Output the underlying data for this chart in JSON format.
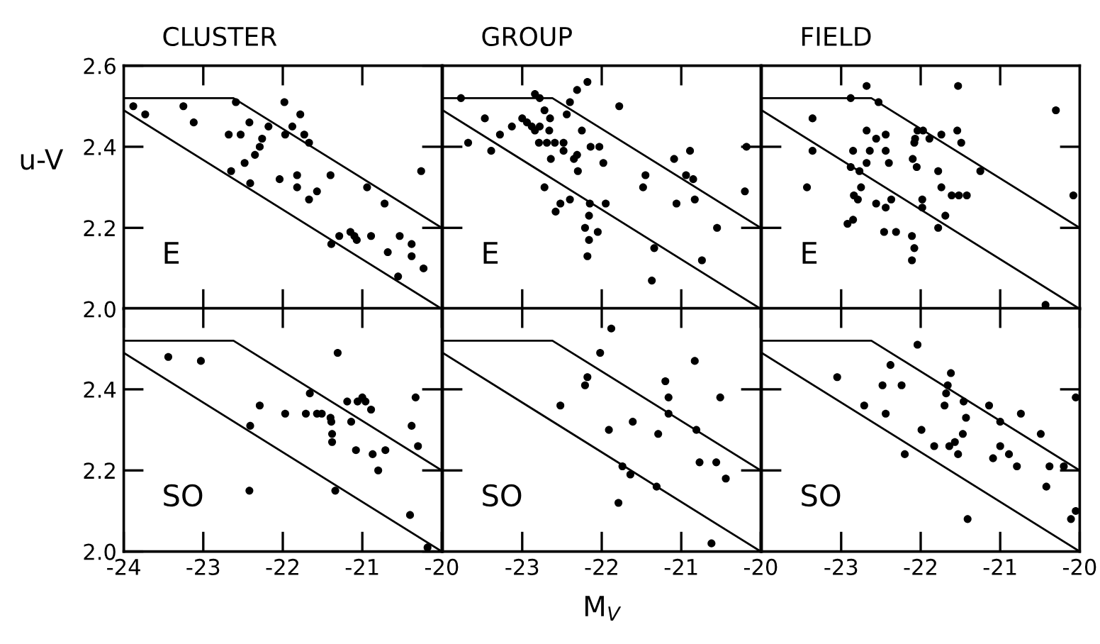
{
  "chart_data": [
    {
      "type": "scatter",
      "title": "CLUSTER",
      "ylabel": "u-V",
      "annotations": [
        "E"
      ],
      "tick_labels": "y",
      "xlim": [
        -24,
        -20
      ],
      "ylim": [
        2.0,
        2.6
      ],
      "xticks": [
        -23,
        -22,
        -21
      ],
      "yticks": [
        {
          "value": 2.0,
          "label": "2.0"
        },
        2.2,
        2.4,
        2.6
      ],
      "series": [
        {
          "color": "#000000",
          "marker": "circle",
          "x": [
            -23.88,
            -23.73,
            -23.25,
            -23.12,
            -22.59,
            -22.68,
            -22.53,
            -22.42,
            -22.18,
            -21.98,
            -21.78,
            -21.88,
            -21.97,
            -21.73,
            -21.67,
            -22.26,
            -22.29,
            -22.35,
            -22.48,
            -22.65,
            -22.41,
            -22.04,
            -21.82,
            -21.82,
            -21.57,
            -21.67,
            -21.4,
            -20.94,
            -20.72,
            -20.26,
            -21.39,
            -21.29,
            -21.15,
            -21.1,
            -21.07,
            -20.89,
            -20.53,
            -20.38,
            -20.38,
            -20.68,
            -20.55,
            -20.23
          ],
          "values": [
            2.5,
            2.48,
            2.5,
            2.46,
            2.51,
            2.43,
            2.43,
            2.46,
            2.45,
            2.51,
            2.48,
            2.45,
            2.43,
            2.43,
            2.41,
            2.42,
            2.4,
            2.38,
            2.36,
            2.34,
            2.31,
            2.32,
            2.33,
            2.3,
            2.29,
            2.27,
            2.33,
            2.3,
            2.26,
            2.34,
            2.16,
            2.18,
            2.19,
            2.18,
            2.17,
            2.18,
            2.18,
            2.16,
            2.13,
            2.14,
            2.08,
            2.1
          ]
        },
        {
          "type": "line",
          "color": "#000000",
          "x": [
            -24,
            -22.62,
            -20
          ],
          "values": [
            2.52,
            2.52,
            2.2
          ]
        },
        {
          "type": "line",
          "color": "#000000",
          "x": [
            -24,
            -20
          ],
          "values": [
            2.49,
            2.0
          ]
        }
      ]
    },
    {
      "type": "scatter",
      "title": "GROUP",
      "annotations": [
        "E"
      ],
      "tick_labels": false,
      "xlim": [
        -24,
        -20
      ],
      "ylim": [
        2.0,
        2.6
      ],
      "xticks": [
        -23,
        -22,
        -21
      ],
      "yticks": [
        2.2,
        2.4
      ],
      "series": [
        {
          "color": "#000000",
          "marker": "circle",
          "x": [
            -23.77,
            -23.47,
            -23.68,
            -23.39,
            -23.28,
            -23.13,
            -23.0,
            -22.94,
            -22.88,
            -22.84,
            -22.78,
            -22.84,
            -22.78,
            -22.72,
            -22.65,
            -22.66,
            -22.79,
            -22.69,
            -22.59,
            -22.48,
            -22.48,
            -22.64,
            -22.44,
            -22.4,
            -22.31,
            -22.18,
            -22.25,
            -22.35,
            -22.3,
            -22.31,
            -22.14,
            -22.03,
            -21.98,
            -21.78,
            -22.72,
            -22.52,
            -22.58,
            -22.4,
            -22.15,
            -22.16,
            -22.21,
            -22.05,
            -22.16,
            -22.18,
            -21.95,
            -21.45,
            -21.48,
            -21.34,
            -21.37,
            -21.09,
            -20.89,
            -20.94,
            -20.85,
            -20.83,
            -21.06,
            -20.55,
            -20.74,
            -20.18,
            -20.2
          ],
          "values": [
            2.52,
            2.47,
            2.41,
            2.39,
            2.43,
            2.45,
            2.47,
            2.46,
            2.45,
            2.44,
            2.45,
            2.53,
            2.52,
            2.49,
            2.47,
            2.44,
            2.41,
            2.41,
            2.41,
            2.41,
            2.39,
            2.37,
            2.48,
            2.51,
            2.54,
            2.56,
            2.44,
            2.37,
            2.34,
            2.38,
            2.4,
            2.4,
            2.36,
            2.5,
            2.3,
            2.26,
            2.24,
            2.27,
            2.26,
            2.23,
            2.2,
            2.19,
            2.17,
            2.13,
            2.26,
            2.33,
            2.3,
            2.15,
            2.07,
            2.37,
            2.39,
            2.33,
            2.32,
            2.27,
            2.26,
            2.2,
            2.12,
            2.4,
            2.29
          ]
        },
        {
          "type": "line",
          "color": "#000000",
          "x": [
            -24,
            -22.62,
            -20
          ],
          "values": [
            2.52,
            2.52,
            2.2
          ]
        },
        {
          "type": "line",
          "color": "#000000",
          "x": [
            -24,
            -20
          ],
          "values": [
            2.49,
            2.0
          ]
        }
      ]
    },
    {
      "type": "scatter",
      "title": "FIELD",
      "annotations": [
        "E"
      ],
      "tick_labels": false,
      "xlim": [
        -24,
        -20
      ],
      "ylim": [
        2.0,
        2.6
      ],
      "xticks": [
        -23,
        -22,
        -21
      ],
      "yticks": [
        2.2,
        2.4
      ],
      "series": [
        {
          "color": "#000000",
          "marker": "circle",
          "x": [
            -22.68,
            -21.53,
            -22.88,
            -22.53,
            -23.36,
            -20.3,
            -23.36,
            -23.43,
            -22.68,
            -22.56,
            -22.44,
            -22.85,
            -22.64,
            -22.44,
            -22.4,
            -22.68,
            -22.88,
            -22.77,
            -22.04,
            -21.97,
            -22.07,
            -22.08,
            -21.89,
            -21.74,
            -21.54,
            -21.49,
            -22.1,
            -22.05,
            -21.78,
            -21.25,
            -22.75,
            -22.84,
            -22.79,
            -22.56,
            -22.44,
            -22.37,
            -21.74,
            -21.61,
            -21.52,
            -21.42,
            -21.98,
            -21.98,
            -21.69,
            -21.78,
            -22.92,
            -22.85,
            -22.46,
            -22.31,
            -22.11,
            -22.08,
            -22.11,
            -20.08,
            -20.43
          ],
          "values": [
            2.55,
            2.55,
            2.52,
            2.51,
            2.47,
            2.49,
            2.39,
            2.3,
            2.44,
            2.42,
            2.43,
            2.39,
            2.39,
            2.39,
            2.36,
            2.36,
            2.35,
            2.34,
            2.44,
            2.44,
            2.42,
            2.41,
            2.42,
            2.43,
            2.44,
            2.41,
            2.37,
            2.35,
            2.34,
            2.34,
            2.3,
            2.28,
            2.27,
            2.26,
            2.25,
            2.27,
            2.3,
            2.28,
            2.28,
            2.28,
            2.27,
            2.25,
            2.23,
            2.2,
            2.21,
            2.22,
            2.19,
            2.19,
            2.18,
            2.15,
            2.12,
            2.28,
            2.01
          ]
        },
        {
          "type": "line",
          "color": "#000000",
          "x": [
            -24,
            -22.62,
            -20
          ],
          "values": [
            2.52,
            2.52,
            2.2
          ]
        },
        {
          "type": "line",
          "color": "#000000",
          "x": [
            -24,
            -20
          ],
          "values": [
            2.49,
            2.0
          ]
        }
      ]
    },
    {
      "type": "scatter",
      "annotations": [
        "SO"
      ],
      "xlim": [
        -24,
        -20
      ],
      "ylim": [
        2.0,
        2.6
      ],
      "xticks": [
        -24,
        -23,
        -22,
        -21,
        -20
      ],
      "yticks": [
        {
          "value": 2.0,
          "label": "2.0"
        },
        2.2,
        2.4
      ],
      "series": [
        {
          "color": "#000000",
          "marker": "circle",
          "x": [
            -23.44,
            -23.03,
            -21.31,
            -21.66,
            -22.29,
            -22.41,
            -21.97,
            -21.71,
            -21.57,
            -21.51,
            -21.4,
            -21.39,
            -21.38,
            -21.38,
            -21.19,
            -21.06,
            -21.0,
            -20.96,
            -20.89,
            -21.14,
            -21.08,
            -20.87,
            -20.71,
            -20.8,
            -20.33,
            -20.38,
            -20.3,
            -22.42,
            -21.34,
            -20.4,
            -20.18
          ],
          "values": [
            2.48,
            2.47,
            2.49,
            2.39,
            2.36,
            2.31,
            2.34,
            2.34,
            2.34,
            2.34,
            2.33,
            2.32,
            2.29,
            2.27,
            2.37,
            2.37,
            2.38,
            2.37,
            2.35,
            2.32,
            2.25,
            2.24,
            2.25,
            2.2,
            2.38,
            2.31,
            2.26,
            2.15,
            2.15,
            2.09,
            2.01
          ]
        },
        {
          "type": "line",
          "color": "#000000",
          "x": [
            -24,
            -22.62,
            -20
          ],
          "values": [
            2.52,
            2.52,
            2.2
          ]
        },
        {
          "type": "line",
          "color": "#000000",
          "x": [
            -24,
            -20
          ],
          "values": [
            2.49,
            2.0
          ]
        }
      ]
    },
    {
      "type": "scatter",
      "xlabel": "M$_{V}$",
      "annotations": [
        "SO"
      ],
      "tick_labels": "x",
      "xlim": [
        -24,
        -20
      ],
      "ylim": [
        2.0,
        2.6
      ],
      "xticks": [
        -23,
        -22,
        -21,
        -20
      ],
      "yticks": [
        2.2,
        2.4
      ],
      "series": [
        {
          "color": "#000000",
          "marker": "circle",
          "x": [
            -21.88,
            -22.02,
            -20.83,
            -22.18,
            -22.21,
            -22.52,
            -21.2,
            -21.16,
            -21.16,
            -20.51,
            -21.91,
            -21.61,
            -21.29,
            -20.81,
            -20.77,
            -20.56,
            -20.44,
            -21.74,
            -21.64,
            -21.31,
            -21.79,
            -20.62
          ],
          "values": [
            2.55,
            2.49,
            2.47,
            2.43,
            2.41,
            2.36,
            2.42,
            2.38,
            2.34,
            2.38,
            2.3,
            2.32,
            2.29,
            2.3,
            2.22,
            2.22,
            2.18,
            2.21,
            2.19,
            2.16,
            2.12,
            2.02
          ]
        },
        {
          "type": "line",
          "color": "#000000",
          "x": [
            -24,
            -22.62,
            -20
          ],
          "values": [
            2.52,
            2.52,
            2.2
          ]
        },
        {
          "type": "line",
          "color": "#000000",
          "x": [
            -24,
            -20
          ],
          "values": [
            2.49,
            2.0
          ]
        }
      ]
    },
    {
      "type": "scatter",
      "annotations": [
        "SO"
      ],
      "tick_labels": "x",
      "xlim": [
        -24,
        -20
      ],
      "ylim": [
        2.0,
        2.6
      ],
      "xticks": [
        -23,
        -22,
        -21,
        -20
      ],
      "yticks": [
        2.2,
        2.4
      ],
      "series": [
        {
          "color": "#000000",
          "marker": "circle",
          "x": [
            -22.04,
            -23.05,
            -22.38,
            -22.48,
            -22.24,
            -22.71,
            -22.44,
            -22.2,
            -21.99,
            -21.62,
            -21.66,
            -21.68,
            -21.7,
            -21.46,
            -21.43,
            -21.47,
            -21.64,
            -21.57,
            -21.53,
            -21.83,
            -21.14,
            -21.0,
            -20.74,
            -21.0,
            -21.09,
            -20.89,
            -20.79,
            -20.49,
            -20.38,
            -20.42,
            -20.2,
            -20.05,
            -21.41,
            -20.05,
            -20.11
          ],
          "values": [
            2.51,
            2.43,
            2.46,
            2.41,
            2.41,
            2.36,
            2.34,
            2.24,
            2.3,
            2.44,
            2.41,
            2.39,
            2.36,
            2.37,
            2.33,
            2.29,
            2.26,
            2.27,
            2.24,
            2.26,
            2.36,
            2.32,
            2.34,
            2.26,
            2.23,
            2.24,
            2.21,
            2.29,
            2.21,
            2.16,
            2.21,
            2.38,
            2.08,
            2.1,
            2.08
          ]
        },
        {
          "type": "line",
          "color": "#000000",
          "x": [
            -24,
            -22.62,
            -20
          ],
          "values": [
            2.52,
            2.52,
            2.2
          ]
        },
        {
          "type": "line",
          "color": "#000000",
          "x": [
            -24,
            -20
          ],
          "values": [
            2.49,
            2.0
          ]
        }
      ]
    }
  ]
}
